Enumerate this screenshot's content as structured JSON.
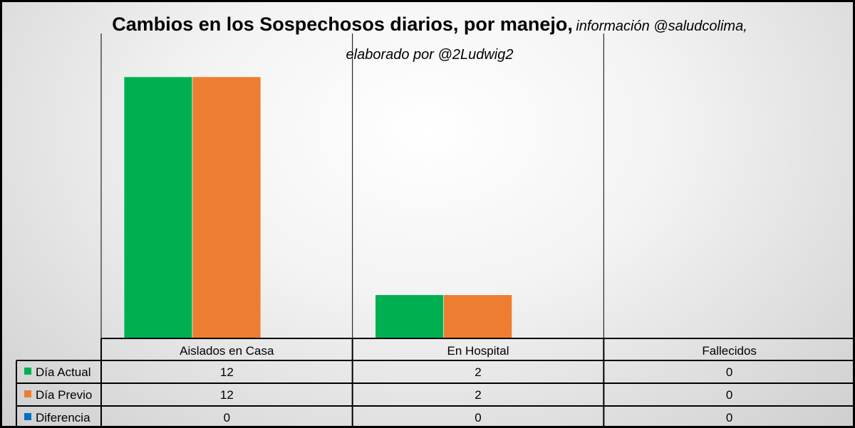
{
  "title": {
    "main": "Cambios en los Sospechosos diarios, por manejo,",
    "sub_line1": "información @saludcolima,",
    "sub_line2": "elaborado por @2Ludwig2"
  },
  "colors": {
    "actual": "#00b050",
    "previo": "#ed7d31",
    "diferencia": "#0070c0"
  },
  "chart_data": {
    "type": "bar",
    "title": "Cambios en los Sospechosos diarios, por manejo, información @saludcolima, elaborado por @2Ludwig2",
    "categories": [
      "Aislados en Casa",
      "En Hospital",
      "Fallecidos"
    ],
    "series": [
      {
        "name": "Día Actual",
        "values": [
          12,
          2,
          0
        ]
      },
      {
        "name": "Día Previo",
        "values": [
          12,
          2,
          0
        ]
      },
      {
        "name": "Diferencia",
        "values": [
          0,
          0,
          0
        ]
      }
    ],
    "ylim": [
      0,
      14
    ],
    "grid": false,
    "legend": "data-table"
  }
}
